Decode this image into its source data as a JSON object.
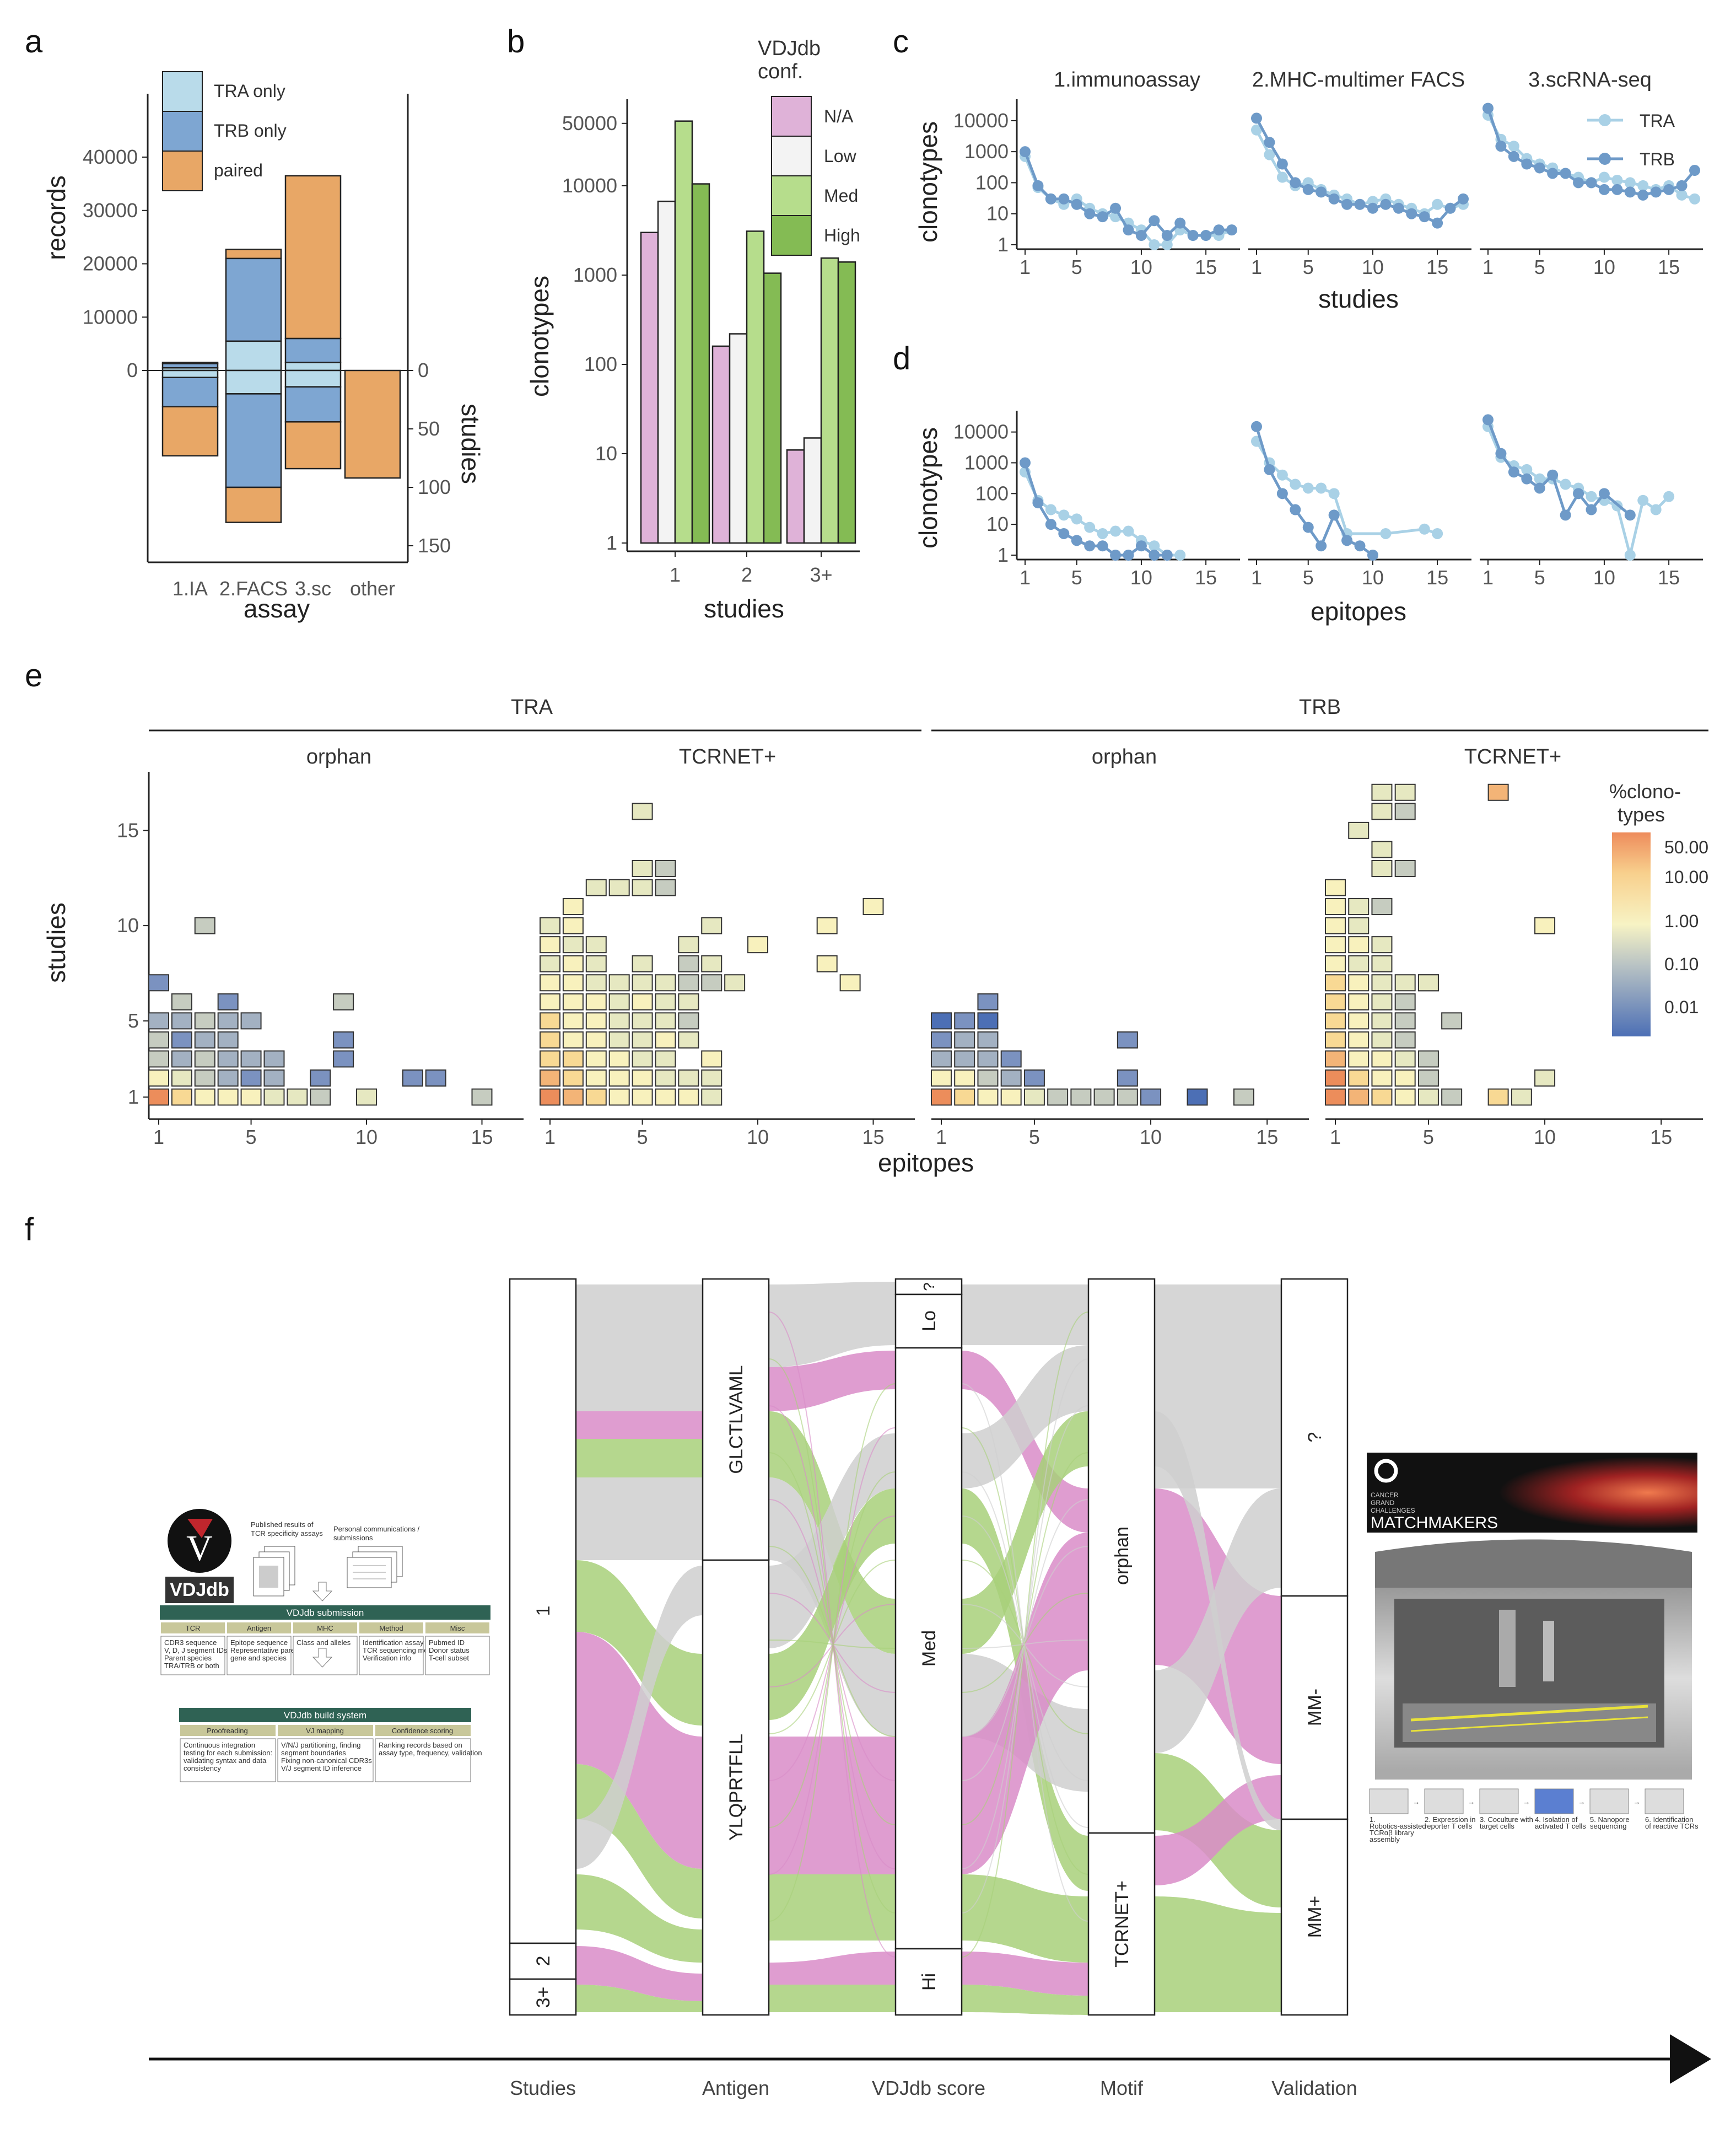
{
  "panels": {
    "a": "a",
    "b": "b",
    "c": "c",
    "d": "d",
    "e": "e",
    "f": "f"
  },
  "colors": {
    "tra": "#b9dbea",
    "trb": "#7ea6d2",
    "paired": "#e8a766",
    "na": "#dfb2d8",
    "low": "#f3f3f3",
    "med": "#b6dd8c",
    "high": "#84bb54",
    "line_tra": "#a9d1e6",
    "line_trb": "#6e9ac8",
    "flow_pink": "#d98cc8",
    "flow_green": "#a8d07a",
    "flow_grey": "#cfcfcf"
  },
  "chart_data": [
    {
      "id": "a",
      "type": "bar",
      "xlabel": "assay",
      "ylabel": "records",
      "ylabel2": "studies",
      "categories": [
        "1.IA",
        "2.FACS",
        "3.sc",
        "other"
      ],
      "yticks": [
        "0",
        "10000",
        "20000",
        "30000",
        "40000"
      ],
      "yticks2": [
        "0",
        "50",
        "100",
        "150"
      ],
      "ylim": [
        0,
        45000
      ],
      "ylim2": [
        0,
        160
      ],
      "legend": [
        "TRA only",
        "TRB only",
        "paired"
      ],
      "records": {
        "tra": [
          500,
          5500,
          1500,
          0
        ],
        "trb": [
          800,
          15500,
          4500,
          0
        ],
        "paired": [
          200,
          1700,
          30500,
          0
        ]
      },
      "studies": {
        "tra": [
          6,
          20,
          14,
          0
        ],
        "trb": [
          25,
          80,
          30,
          0
        ],
        "paired": [
          42,
          30,
          40,
          92
        ]
      }
    },
    {
      "id": "b",
      "type": "bar",
      "xlabel": "studies",
      "ylabel": "clonotypes",
      "legend_title": "VDJdb\nconf.",
      "legend": [
        "N/A",
        "Low",
        "Med",
        "High"
      ],
      "categories": [
        "1",
        "2",
        "3+"
      ],
      "yticks": [
        "1",
        "10",
        "100",
        "1000",
        "10000",
        "50000"
      ],
      "yscale": "log",
      "series": [
        {
          "name": "N/A",
          "values": [
            3000,
            160,
            11
          ]
        },
        {
          "name": "Low",
          "values": [
            6700,
            220,
            15
          ]
        },
        {
          "name": "Med",
          "values": [
            53000,
            3100,
            1550
          ]
        },
        {
          "name": "High",
          "values": [
            10500,
            1050,
            1400
          ]
        }
      ]
    },
    {
      "id": "c",
      "type": "line",
      "xlabel": "studies",
      "ylabel": "clonotypes",
      "yscale": "log",
      "facets": [
        "1.immunoassay",
        "2.MHC-multimer FACS",
        "3.scRNA-seq"
      ],
      "legend": [
        "TRA",
        "TRB"
      ],
      "yticks": [
        "1",
        "10",
        "100",
        "1000",
        "10000"
      ],
      "xticks": [
        "1",
        "5",
        "10",
        "15"
      ],
      "series": [
        {
          "facet": 0,
          "name": "TRA",
          "x": [
            1,
            2,
            3,
            4,
            5,
            6,
            7,
            8,
            9,
            10,
            11,
            12,
            13,
            14,
            15,
            16,
            17
          ],
          "y": [
            700,
            70,
            30,
            20,
            30,
            15,
            10,
            8,
            5,
            3,
            1,
            1,
            3,
            2,
            2,
            2,
            3
          ]
        },
        {
          "facet": 0,
          "name": "TRB",
          "x": [
            1,
            2,
            3,
            4,
            5,
            6,
            7,
            8,
            9,
            10,
            11,
            12,
            13,
            14,
            15,
            16,
            17
          ],
          "y": [
            1000,
            80,
            30,
            30,
            20,
            10,
            8,
            15,
            3,
            2,
            6,
            2,
            5,
            2,
            2,
            3,
            3
          ]
        },
        {
          "facet": 1,
          "name": "TRA",
          "x": [
            1,
            2,
            3,
            4,
            5,
            6,
            7,
            8,
            9,
            10,
            11,
            12,
            13,
            14,
            15,
            16,
            17
          ],
          "y": [
            5000,
            800,
            150,
            80,
            100,
            60,
            40,
            30,
            20,
            25,
            30,
            20,
            15,
            10,
            20,
            15,
            20
          ]
        },
        {
          "facet": 1,
          "name": "TRB",
          "x": [
            1,
            2,
            3,
            4,
            5,
            6,
            7,
            8,
            9,
            10,
            11,
            12,
            13,
            14,
            15,
            16,
            17
          ],
          "y": [
            12000,
            2000,
            400,
            100,
            60,
            50,
            30,
            20,
            20,
            15,
            20,
            15,
            10,
            8,
            5,
            15,
            30
          ]
        },
        {
          "facet": 2,
          "name": "TRA",
          "x": [
            1,
            2,
            3,
            4,
            5,
            6,
            7,
            8,
            9,
            10,
            11,
            12,
            13,
            14,
            15,
            16,
            17
          ],
          "y": [
            15000,
            2500,
            1500,
            600,
            400,
            300,
            200,
            150,
            100,
            150,
            120,
            100,
            80,
            60,
            80,
            40,
            30
          ]
        },
        {
          "facet": 2,
          "name": "TRB",
          "x": [
            1,
            2,
            3,
            4,
            5,
            6,
            7,
            8,
            9,
            10,
            11,
            12,
            13,
            14,
            15,
            16,
            17
          ],
          "y": [
            25000,
            1500,
            700,
            400,
            300,
            200,
            200,
            100,
            100,
            60,
            60,
            50,
            40,
            50,
            60,
            80,
            250
          ]
        }
      ]
    },
    {
      "id": "d",
      "type": "line",
      "xlabel": "epitopes",
      "ylabel": "clonotypes",
      "yscale": "log",
      "yticks": [
        "1",
        "10",
        "100",
        "1000",
        "10000"
      ],
      "xticks": [
        "1",
        "5",
        "10",
        "15"
      ],
      "series": [
        {
          "facet": 0,
          "name": "TRA",
          "x": [
            1,
            2,
            3,
            4,
            5,
            6,
            7,
            8,
            9,
            10,
            11,
            12,
            13
          ],
          "y": [
            500,
            60,
            30,
            20,
            15,
            8,
            5,
            6,
            6,
            3,
            2,
            1,
            1
          ]
        },
        {
          "facet": 0,
          "name": "TRB",
          "x": [
            1,
            2,
            3,
            4,
            5,
            6,
            7,
            8,
            9,
            10,
            11,
            12
          ],
          "y": [
            1000,
            50,
            10,
            5,
            3,
            2,
            2,
            1,
            1,
            2,
            1,
            1
          ]
        },
        {
          "facet": 1,
          "name": "TRA",
          "x": [
            1,
            2,
            3,
            4,
            5,
            6,
            7,
            8,
            11,
            14,
            15
          ],
          "y": [
            5000,
            1000,
            400,
            200,
            150,
            150,
            100,
            5,
            5,
            7,
            5
          ]
        },
        {
          "facet": 1,
          "name": "TRB",
          "x": [
            1,
            2,
            3,
            4,
            5,
            6,
            7,
            8,
            9,
            10
          ],
          "y": [
            15000,
            600,
            100,
            30,
            8,
            2,
            20,
            3,
            2,
            1
          ]
        },
        {
          "facet": 2,
          "name": "TRA",
          "x": [
            1,
            2,
            3,
            4,
            5,
            6,
            7,
            8,
            9,
            10,
            11,
            12,
            13,
            14,
            15
          ],
          "y": [
            15000,
            1500,
            800,
            600,
            300,
            300,
            200,
            150,
            80,
            60,
            40,
            1,
            60,
            30,
            80
          ]
        },
        {
          "facet": 2,
          "name": "TRB",
          "x": [
            1,
            2,
            3,
            4,
            5,
            6,
            7,
            8,
            9,
            10,
            12
          ],
          "y": [
            25000,
            2000,
            500,
            300,
            150,
            400,
            20,
            100,
            30,
            100,
            20
          ]
        }
      ]
    },
    {
      "id": "e",
      "type": "heatmap",
      "xlabel": "epitopes",
      "ylabel": "studies",
      "groups": [
        "TRA",
        "TRB"
      ],
      "facets": [
        "orphan",
        "TCRNET+"
      ],
      "legend_title": "%clono-\ntypes",
      "legend_ticks": [
        "50.00",
        "10.00",
        "1.00",
        "0.10",
        "0.01"
      ],
      "xticks": [
        "1",
        "5",
        "10",
        "15"
      ],
      "yticks": [
        "1",
        "5",
        "10",
        "15"
      ]
    },
    {
      "id": "f",
      "type": "alluvial",
      "axes": [
        "Studies",
        "Antigen",
        "VDJdb score",
        "Motif",
        "Validation"
      ],
      "studies": [
        "1",
        "2",
        "3+"
      ],
      "antigen": [
        "GLCTLVAML",
        "YLQPRTFLL"
      ],
      "score": [
        "?",
        "Lo",
        "Med",
        "Hi"
      ],
      "motif": [
        "orphan",
        "TCRNET+"
      ],
      "validation": [
        "?",
        "MM-",
        "MM+"
      ]
    }
  ],
  "inset_left": {
    "logo_text": "VDJdb",
    "published": "Published results of TCR specificity assays",
    "personal": "Personal communications / submissions",
    "submission_title": "VDJdb submission",
    "submission_cols": [
      "TCR",
      "Antigen",
      "MHC",
      "Method",
      "Misc"
    ],
    "submission_cells": [
      "CDR3 sequence\nV, D, J segment IDs\nParent species\nTRA/TRB or both",
      "Epitope sequence\nRepresentative parent\ngene and species",
      "Class and alleles",
      "Identification assay\nTCR sequencing method\nVerification info",
      "Pubmed ID\nDonor status\nT-cell subset"
    ],
    "build_title": "VDJdb build system",
    "build_cols": [
      "Proofreading",
      "VJ mapping",
      "Confidence scoring"
    ],
    "build_cells": [
      "Continuous integration\ntesting for each submission:\nvalidating syntax and data\nconsistency",
      "V/N/J partitioning, finding\nsegment boundaries\nFixing non-canonical CDR3s\nV/J segment ID inference",
      "Ranking records based on\nassay type, frequency, validation"
    ]
  },
  "inset_right": {
    "brand_small": "CANCER\nGRAND\nCHALLENGES",
    "brand_big": "MATCHMAKERS",
    "steps": [
      "1. Robotics-assisted TCRαβ library assembly",
      "2. Expression in reporter T cells",
      "3. Coculture with target cells",
      "4. Isolation of activated T cells",
      "5. Nanopore sequencing",
      "6. Identification of reactive TCRs"
    ]
  }
}
